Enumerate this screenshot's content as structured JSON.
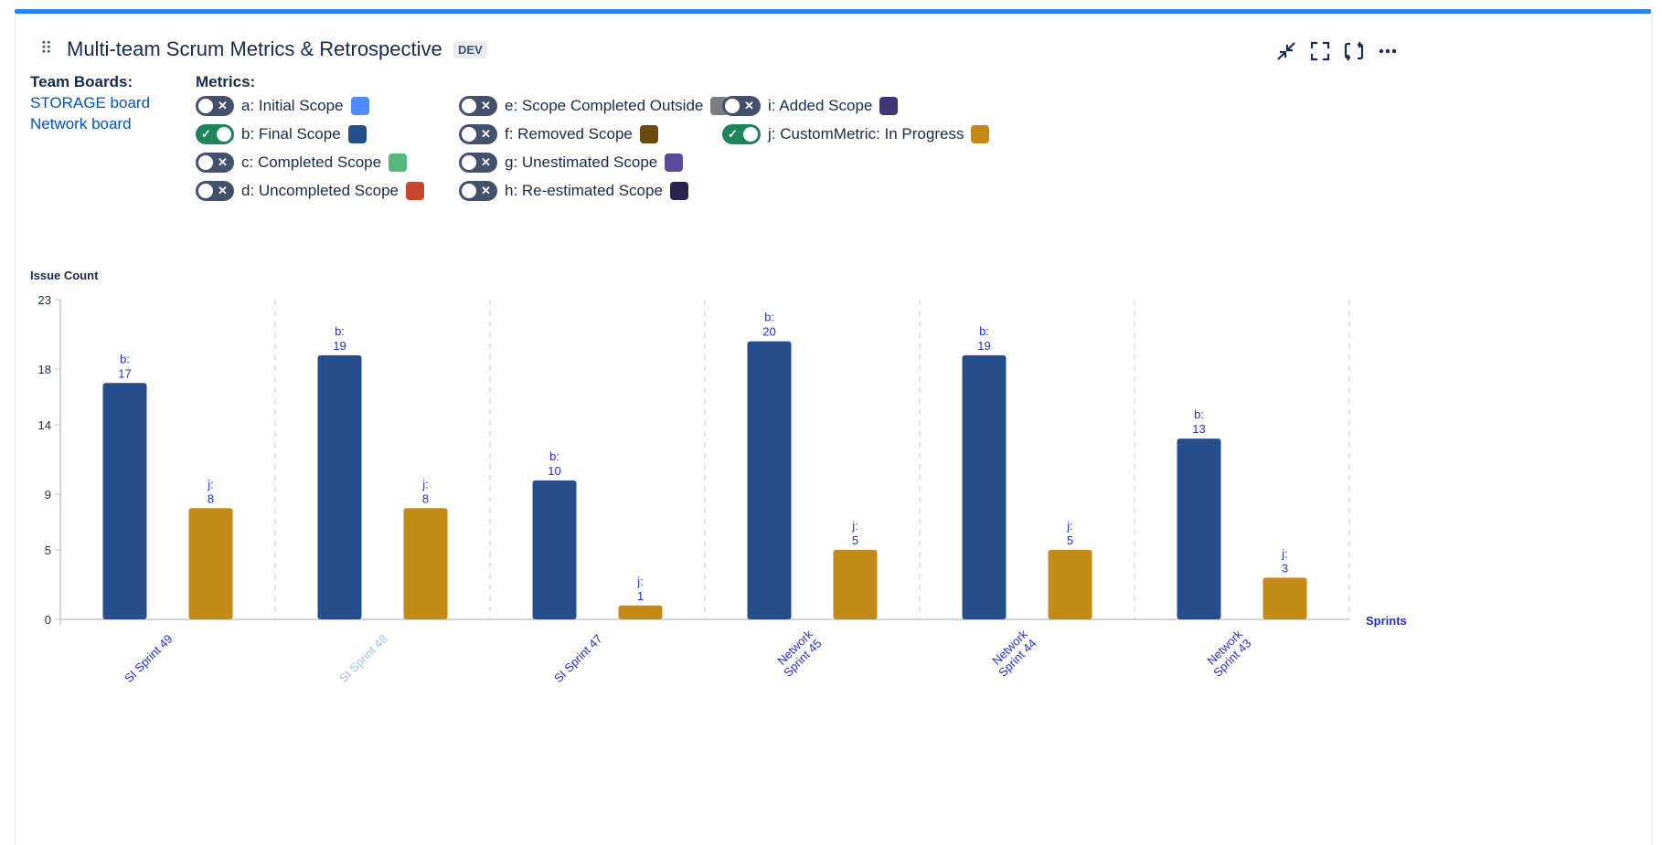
{
  "header": {
    "title": "Multi-team Scrum Metrics & Retrospective",
    "badge": "DEV",
    "drag_glyph": "⠿"
  },
  "team_boards": {
    "label": "Team Boards:",
    "boards": [
      "STORAGE board",
      "Network board"
    ]
  },
  "metrics": {
    "label": "Metrics:",
    "items": [
      {
        "key": "a",
        "label": "a: Initial Scope",
        "enabled": false,
        "color": "#4c8cff"
      },
      {
        "key": "b",
        "label": "b: Final Scope",
        "enabled": true,
        "color": "#264d8c"
      },
      {
        "key": "c",
        "label": "c: Completed Scope",
        "enabled": false,
        "color": "#57b87b"
      },
      {
        "key": "d",
        "label": "d: Uncompleted Scope",
        "enabled": false,
        "color": "#c9452e"
      },
      {
        "key": "e",
        "label": "e: Scope Completed Outside",
        "enabled": false,
        "color": "#7a7d82"
      },
      {
        "key": "f",
        "label": "f: Removed Scope",
        "enabled": false,
        "color": "#6b4a0c"
      },
      {
        "key": "g",
        "label": "g: Unestimated Scope",
        "enabled": false,
        "color": "#5a4a9c"
      },
      {
        "key": "h",
        "label": "h: Re-estimated Scope",
        "enabled": false,
        "color": "#2a2550"
      },
      {
        "key": "i",
        "label": "i: Added Scope",
        "enabled": false,
        "color": "#3d3575"
      },
      {
        "key": "j",
        "label": "j: CustomMetric: In Progress",
        "enabled": true,
        "color": "#c48a17"
      }
    ]
  },
  "colors": {
    "accent": "#2684ff",
    "link": "#0052cc",
    "label_blue": "#1f2fe0",
    "muted_sprint": "#9ec3ee",
    "toggle_on": "#1f845a",
    "toggle_off": "#42526e"
  },
  "chart_data": {
    "type": "bar",
    "title": "",
    "ylabel": "Issue Count",
    "xlabel": "Sprints",
    "ylim": [
      0,
      23
    ],
    "yticks": [
      0,
      5,
      9,
      14,
      18,
      23
    ],
    "categories": [
      {
        "lines": [
          "SI Sprint 49"
        ],
        "muted": false
      },
      {
        "lines": [
          "SI Sprint 48"
        ],
        "muted": true
      },
      {
        "lines": [
          "SI Sprint 47"
        ],
        "muted": false
      },
      {
        "lines": [
          "Network",
          "Sprint 45"
        ],
        "muted": false
      },
      {
        "lines": [
          "Network",
          "Sprint 44"
        ],
        "muted": false
      },
      {
        "lines": [
          "Network",
          "Sprint 43"
        ],
        "muted": false
      }
    ],
    "series": [
      {
        "name": "b",
        "label_prefix": "b:",
        "color": "#264d8c",
        "values": [
          17,
          19,
          10,
          20,
          19,
          13
        ]
      },
      {
        "name": "j",
        "label_prefix": "j:",
        "color": "#c48a17",
        "values": [
          8,
          8,
          1,
          5,
          5,
          3
        ]
      }
    ]
  }
}
